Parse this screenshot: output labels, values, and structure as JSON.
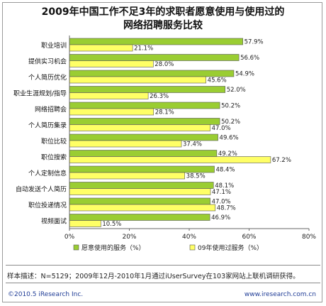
{
  "chart_data": {
    "type": "bar",
    "orientation": "horizontal",
    "title_line1": "2009年中国工作不足3年的求职者愿意使用与使用过的",
    "title_line2": "网络招聘服务比较",
    "categories": [
      "职业培训",
      "提供实习机会",
      "个人简历优化",
      "职业生涯规划/指导",
      "网络招聘会",
      "个人简历集录",
      "职位比较",
      "职位搜索",
      "个人定制信息",
      "自动发送个人简历",
      "职位投递情况",
      "视频面试"
    ],
    "series": [
      {
        "name": "愿意使用的服务（%）",
        "color": "#9acd32",
        "values": [
          57.9,
          56.6,
          54.9,
          52.0,
          50.2,
          50.2,
          49.6,
          49.2,
          48.4,
          48.1,
          47.0,
          46.9
        ],
        "labels": [
          "57.9%",
          "56.6%",
          "54.9%",
          "52.0%",
          "50.2%",
          "50.2%",
          "49.6%",
          "49.2%",
          "48.4%",
          "48.1%",
          "47.0%",
          "46.9%"
        ]
      },
      {
        "name": "09年使用过服务（%）",
        "color": "#ffff66",
        "values": [
          21.1,
          28.0,
          45.6,
          26.3,
          28.1,
          47.0,
          37.4,
          67.2,
          38.5,
          47.1,
          48.7,
          10.5
        ],
        "labels": [
          "21.1%",
          "28.0%",
          "45.6%",
          "26.3%",
          "28.1%",
          "47.0%",
          "37.4%",
          "67.2%",
          "38.5%",
          "47.1%",
          "48.7%",
          "10.5%"
        ]
      }
    ],
    "xlim": [
      0,
      80
    ],
    "xticks": [
      "0%",
      "20%",
      "40%",
      "60%",
      "80%"
    ],
    "legend_position": "bottom",
    "grid": false
  },
  "footer": {
    "note": "样本描述：N=5129；2009年12月-2010年1月通过iUserSurvey在103家网站上联机调研获得。",
    "copyright": "©2010.5 iResearch Inc.",
    "website": "www.iresearch.com.cn"
  }
}
